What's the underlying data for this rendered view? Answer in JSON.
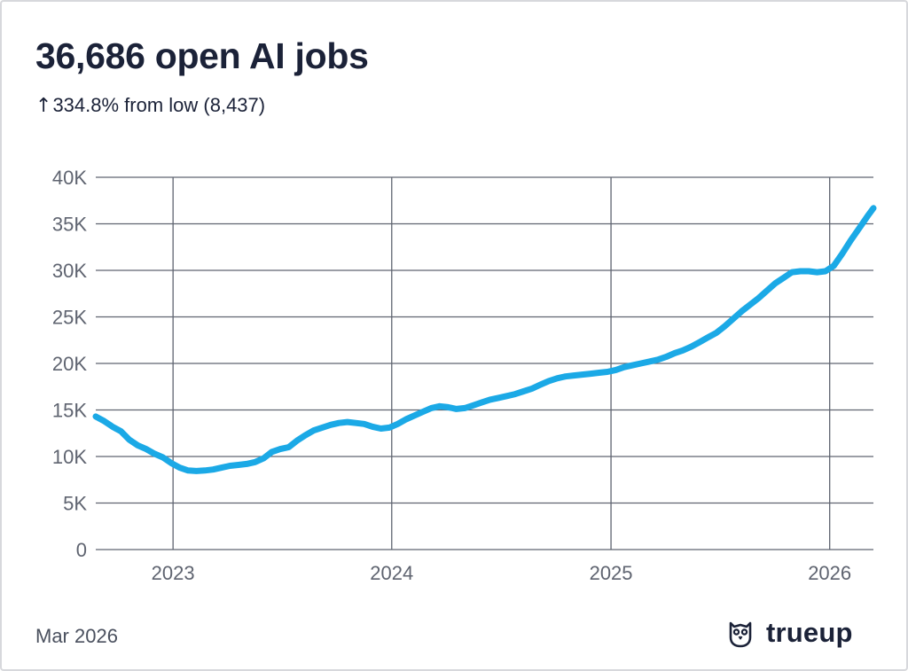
{
  "header": {
    "title": "36,686 open AI jobs",
    "subtitle_arrow": "↑",
    "subtitle_text": "334.8% from low (8,437)"
  },
  "footer": {
    "date": "Mar 2026",
    "brand": "trueup",
    "brand_icon": "owl-icon"
  },
  "colors": {
    "line": "#1ba9e6",
    "grid": "#5f6470",
    "text": "#1b2238",
    "tick": "#5f6470"
  },
  "chart_data": {
    "type": "line",
    "title": "36,686 open AI jobs",
    "xlabel": "",
    "ylabel": "",
    "ylim": [
      0,
      40000
    ],
    "xlim": [
      "2022-08-25",
      "2026-03-15"
    ],
    "grid": true,
    "legend": "none",
    "y_ticks": [
      0,
      5000,
      10000,
      15000,
      20000,
      25000,
      30000,
      35000,
      40000
    ],
    "y_tick_labels": [
      "0",
      "5K",
      "10K",
      "15K",
      "20K",
      "25K",
      "30K",
      "35K",
      "40K"
    ],
    "x_ticks": [
      "2023-01-01",
      "2024-01-01",
      "2025-01-01",
      "2026-01-01"
    ],
    "x_tick_labels": [
      "2023",
      "2024",
      "2025",
      "2026"
    ],
    "series": [
      {
        "x": [
          "2022-08-25",
          "2022-09-08",
          "2022-09-22",
          "2022-10-06",
          "2022-10-20",
          "2022-11-03",
          "2022-11-17",
          "2022-12-01",
          "2022-12-15",
          "2022-12-29",
          "2023-01-12",
          "2023-01-26",
          "2023-02-09",
          "2023-02-23",
          "2023-03-09",
          "2023-03-23",
          "2023-04-06",
          "2023-04-20",
          "2023-05-04",
          "2023-05-18",
          "2023-06-01",
          "2023-06-15",
          "2023-06-29",
          "2023-07-13",
          "2023-07-27",
          "2023-08-10",
          "2023-08-24",
          "2023-09-07",
          "2023-09-21",
          "2023-10-05",
          "2023-10-19",
          "2023-11-02",
          "2023-11-16",
          "2023-11-30",
          "2023-12-14",
          "2023-12-28",
          "2024-01-11",
          "2024-01-25",
          "2024-02-08",
          "2024-02-22",
          "2024-03-07",
          "2024-03-21",
          "2024-04-04",
          "2024-04-18",
          "2024-05-02",
          "2024-05-16",
          "2024-05-30",
          "2024-06-13",
          "2024-06-27",
          "2024-07-11",
          "2024-07-25",
          "2024-08-08",
          "2024-08-22",
          "2024-09-05",
          "2024-09-19",
          "2024-10-03",
          "2024-10-17",
          "2024-10-31",
          "2024-11-14",
          "2024-11-28",
          "2024-12-12",
          "2024-12-26",
          "2025-01-09",
          "2025-01-23",
          "2025-02-06",
          "2025-02-20",
          "2025-03-06",
          "2025-03-20",
          "2025-04-03",
          "2025-04-17",
          "2025-05-01",
          "2025-05-15",
          "2025-05-29",
          "2025-06-12",
          "2025-06-26",
          "2025-07-10",
          "2025-07-24",
          "2025-08-07",
          "2025-08-21",
          "2025-09-04",
          "2025-09-18",
          "2025-10-02",
          "2025-10-16",
          "2025-10-30",
          "2025-11-13",
          "2025-11-27",
          "2025-12-11",
          "2025-12-25",
          "2026-01-08",
          "2026-01-22",
          "2026-02-05",
          "2026-02-19",
          "2026-03-05",
          "2026-03-15"
        ],
        "values": [
          14300,
          13800,
          13200,
          12700,
          11800,
          11200,
          10800,
          10300,
          9900,
          9300,
          8800,
          8500,
          8437,
          8500,
          8600,
          8800,
          9000,
          9100,
          9200,
          9400,
          9800,
          10500,
          10800,
          11000,
          11700,
          12300,
          12800,
          13100,
          13400,
          13600,
          13700,
          13600,
          13500,
          13200,
          13000,
          13100,
          13500,
          14000,
          14400,
          14800,
          15200,
          15400,
          15300,
          15100,
          15200,
          15500,
          15800,
          16100,
          16300,
          16500,
          16700,
          17000,
          17300,
          17700,
          18100,
          18400,
          18600,
          18700,
          18800,
          18900,
          19000,
          19100,
          19300,
          19600,
          19800,
          20000,
          20200,
          20400,
          20700,
          21100,
          21400,
          21800,
          22300,
          22800,
          23300,
          24000,
          24800,
          25600,
          26300,
          27000,
          27800,
          28600,
          29200,
          29800,
          29900,
          29900,
          29800,
          29900,
          30500,
          31800,
          33200,
          34500,
          35800,
          36686
        ]
      }
    ]
  }
}
